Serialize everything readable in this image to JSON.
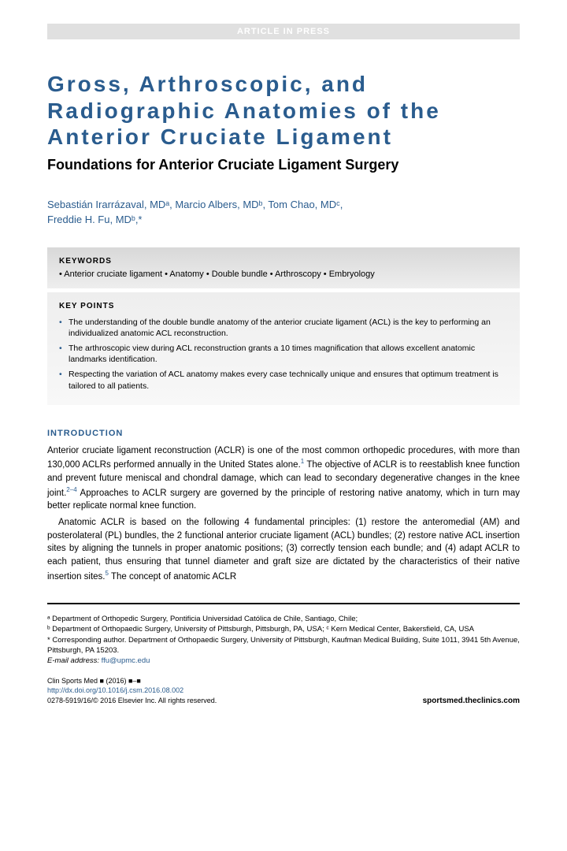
{
  "banner": "ARTICLE IN PRESS",
  "title": "Gross, Arthroscopic, and Radiographic Anatomies of the Anterior Cruciate Ligament",
  "subtitle": "Foundations for Anterior Cruciate Ligament Surgery",
  "authors_line1": "Sebastián Irarrázaval, MDᵃ, Marcio Albers, MDᵇ, Tom Chao, MDᶜ,",
  "authors_line2": "Freddie H. Fu, MDᵇ,*",
  "keywords": {
    "label": "KEYWORDS",
    "terms": "• Anterior cruciate ligament • Anatomy • Double bundle • Arthroscopy • Embryology"
  },
  "keypoints": {
    "label": "KEY POINTS",
    "items": [
      "The understanding of the double bundle anatomy of the anterior cruciate ligament (ACL) is the key to performing an individualized anatomic ACL reconstruction.",
      "The arthroscopic view during ACL reconstruction grants a 10 times magnification that allows excellent anatomic landmarks identification.",
      "Respecting the variation of ACL anatomy makes every case technically unique and ensures that optimum treatment is tailored to all patients."
    ]
  },
  "intro": {
    "heading": "INTRODUCTION",
    "p1_a": "Anterior cruciate ligament reconstruction (ACLR) is one of the most common orthopedic procedures, with more than 130,000 ACLRs performed annually in the United States alone.",
    "p1_ref1": "1",
    "p1_b": " The objective of ACLR is to reestablish knee function and prevent future meniscal and chondral damage, which can lead to secondary degenerative changes in the knee joint.",
    "p1_ref2": "2–4",
    "p1_c": " Approaches to ACLR surgery are governed by the principle of restoring native anatomy, which in turn may better replicate normal knee function.",
    "p2_a": "Anatomic ACLR is based on the following 4 fundamental principles: (1) restore the anteromedial (AM) and posterolateral (PL) bundles, the 2 functional anterior cruciate ligament (ACL) bundles; (2) restore native ACL insertion sites by aligning the tunnels in proper anatomic positions; (3) correctly tension each bundle; and (4) adapt ACLR to each patient, thus ensuring that tunnel diameter and graft size are dictated by the characteristics of their native insertion sites.",
    "p2_ref": "5",
    "p2_b": " The concept of anatomic ACLR"
  },
  "affiliations": {
    "a": "ᵃ Department of Orthopedic Surgery, Pontificia Universidad Católica de Chile, Santiago, Chile;",
    "b": "ᵇ Department of Orthopaedic Surgery, University of Pittsburgh, Pittsburgh, PA, USA; ᶜ Kern Medical Center, Bakersfield, CA, USA",
    "corr": "* Corresponding author. Department of Orthopaedic Surgery, University of Pittsburgh, Kaufman Medical Building, Suite 1011, 3941 5th Avenue, Pittsburgh, PA 15203.",
    "email_label": "E-mail address: ",
    "email": "ffu@upmc.edu"
  },
  "pub": {
    "journal": "Clin Sports Med ■ (2016) ■–■",
    "doi": "http://dx.doi.org/10.1016/j.csm.2016.08.002",
    "copyright": "0278-5919/16/© 2016 Elsevier Inc. All rights reserved.",
    "website": "sportsmed.theclinics.com"
  },
  "colors": {
    "heading_blue": "#2a5c8e",
    "banner_bg": "#e0e0e0",
    "box_gradient_top": "#d8d8d8",
    "box_gradient_bottom": "#f8f8f8"
  }
}
